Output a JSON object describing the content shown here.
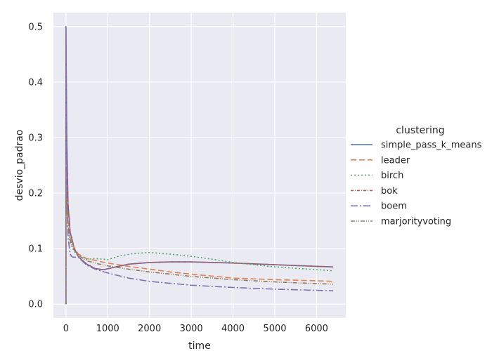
{
  "chart_data": {
    "type": "line",
    "title": "",
    "xlabel": "time",
    "ylabel": "desvio_padrao",
    "xlim": [
      -300,
      6700
    ],
    "ylim": [
      -0.025,
      0.525
    ],
    "xticks": [
      0,
      1000,
      2000,
      3000,
      4000,
      5000,
      6000
    ],
    "yticks": [
      0.0,
      0.1,
      0.2,
      0.3,
      0.4,
      0.5
    ],
    "xtick_labels": [
      "0",
      "1000",
      "2000",
      "3000",
      "4000",
      "5000",
      "6000"
    ],
    "ytick_labels": [
      "0.0",
      "0.1",
      "0.2",
      "0.3",
      "0.4",
      "0.5"
    ],
    "grid": true,
    "legend_title": "clustering",
    "legend_position": "right-outside",
    "background": "#eaeaf2",
    "series": [
      {
        "name": "simple_pass_k_means",
        "color": "#4c72b0",
        "dash": "solid",
        "points": [
          [
            0,
            0.0
          ],
          [
            0,
            0.5
          ],
          [
            20,
            0.3
          ],
          [
            50,
            0.18
          ],
          [
            100,
            0.13
          ],
          [
            200,
            0.1
          ],
          [
            300,
            0.085
          ],
          [
            500,
            0.072
          ],
          [
            700,
            0.064
          ],
          [
            900,
            0.062
          ],
          [
            1200,
            0.067
          ],
          [
            1500,
            0.072
          ],
          [
            2000,
            0.075
          ],
          [
            2500,
            0.076
          ],
          [
            3000,
            0.076
          ],
          [
            4000,
            0.074
          ],
          [
            5000,
            0.071
          ],
          [
            6000,
            0.068
          ],
          [
            6400,
            0.067
          ]
        ]
      },
      {
        "name": "leader",
        "color": "#dd8452",
        "dash": "8,4",
        "points": [
          [
            0,
            0.0
          ],
          [
            0,
            0.25
          ],
          [
            20,
            0.2
          ],
          [
            50,
            0.15
          ],
          [
            100,
            0.12
          ],
          [
            200,
            0.1
          ],
          [
            300,
            0.09
          ],
          [
            500,
            0.082
          ],
          [
            800,
            0.077
          ],
          [
            1000,
            0.074
          ],
          [
            1500,
            0.068
          ],
          [
            2000,
            0.063
          ],
          [
            2500,
            0.058
          ],
          [
            3000,
            0.054
          ],
          [
            4000,
            0.047
          ],
          [
            5000,
            0.044
          ],
          [
            6000,
            0.042
          ],
          [
            6400,
            0.041
          ]
        ]
      },
      {
        "name": "birch",
        "color": "#55a868",
        "dash": "2,3",
        "points": [
          [
            0,
            0.0
          ],
          [
            0,
            0.22
          ],
          [
            20,
            0.18
          ],
          [
            50,
            0.14
          ],
          [
            100,
            0.11
          ],
          [
            200,
            0.095
          ],
          [
            300,
            0.087
          ],
          [
            500,
            0.081
          ],
          [
            700,
            0.082
          ],
          [
            900,
            0.081
          ],
          [
            1000,
            0.08
          ],
          [
            1300,
            0.087
          ],
          [
            1600,
            0.091
          ],
          [
            2000,
            0.093
          ],
          [
            2500,
            0.09
          ],
          [
            3000,
            0.086
          ],
          [
            3500,
            0.081
          ],
          [
            4000,
            0.075
          ],
          [
            5000,
            0.067
          ],
          [
            6000,
            0.062
          ],
          [
            6400,
            0.06
          ]
        ]
      },
      {
        "name": "bok",
        "color": "#c44e52",
        "dash": "4,2,1,2",
        "points": [
          [
            0,
            0.0
          ],
          [
            0,
            0.5
          ],
          [
            20,
            0.29
          ],
          [
            50,
            0.18
          ],
          [
            100,
            0.13
          ],
          [
            200,
            0.1
          ],
          [
            300,
            0.085
          ],
          [
            500,
            0.072
          ],
          [
            700,
            0.064
          ],
          [
            900,
            0.062
          ],
          [
            1200,
            0.067
          ],
          [
            1500,
            0.072
          ],
          [
            2000,
            0.075
          ],
          [
            2500,
            0.076
          ],
          [
            3000,
            0.076
          ],
          [
            4000,
            0.074
          ],
          [
            5000,
            0.071
          ],
          [
            6000,
            0.068
          ],
          [
            6400,
            0.067
          ]
        ]
      },
      {
        "name": "boem",
        "color": "#8172b3",
        "dash": "10,3,2,3",
        "points": [
          [
            0,
            0.0
          ],
          [
            0,
            0.5
          ],
          [
            20,
            0.2
          ],
          [
            50,
            0.12
          ],
          [
            100,
            0.09
          ],
          [
            150,
            0.085
          ],
          [
            300,
            0.084
          ],
          [
            500,
            0.07
          ],
          [
            700,
            0.063
          ],
          [
            1000,
            0.056
          ],
          [
            1500,
            0.047
          ],
          [
            2000,
            0.041
          ],
          [
            3000,
            0.034
          ],
          [
            4000,
            0.03
          ],
          [
            5000,
            0.027
          ],
          [
            6000,
            0.025
          ],
          [
            6400,
            0.024
          ]
        ]
      },
      {
        "name": "marjorityvoting",
        "color": "#937860",
        "dash": "6,2,1,2,1,2",
        "points": [
          [
            0,
            0.0
          ],
          [
            0,
            0.2
          ],
          [
            20,
            0.17
          ],
          [
            50,
            0.14
          ],
          [
            100,
            0.115
          ],
          [
            200,
            0.097
          ],
          [
            300,
            0.088
          ],
          [
            500,
            0.078
          ],
          [
            800,
            0.072
          ],
          [
            1000,
            0.069
          ],
          [
            1500,
            0.063
          ],
          [
            2000,
            0.058
          ],
          [
            3000,
            0.05
          ],
          [
            4000,
            0.044
          ],
          [
            5000,
            0.04
          ],
          [
            6000,
            0.037
          ],
          [
            6400,
            0.036
          ]
        ]
      }
    ]
  }
}
